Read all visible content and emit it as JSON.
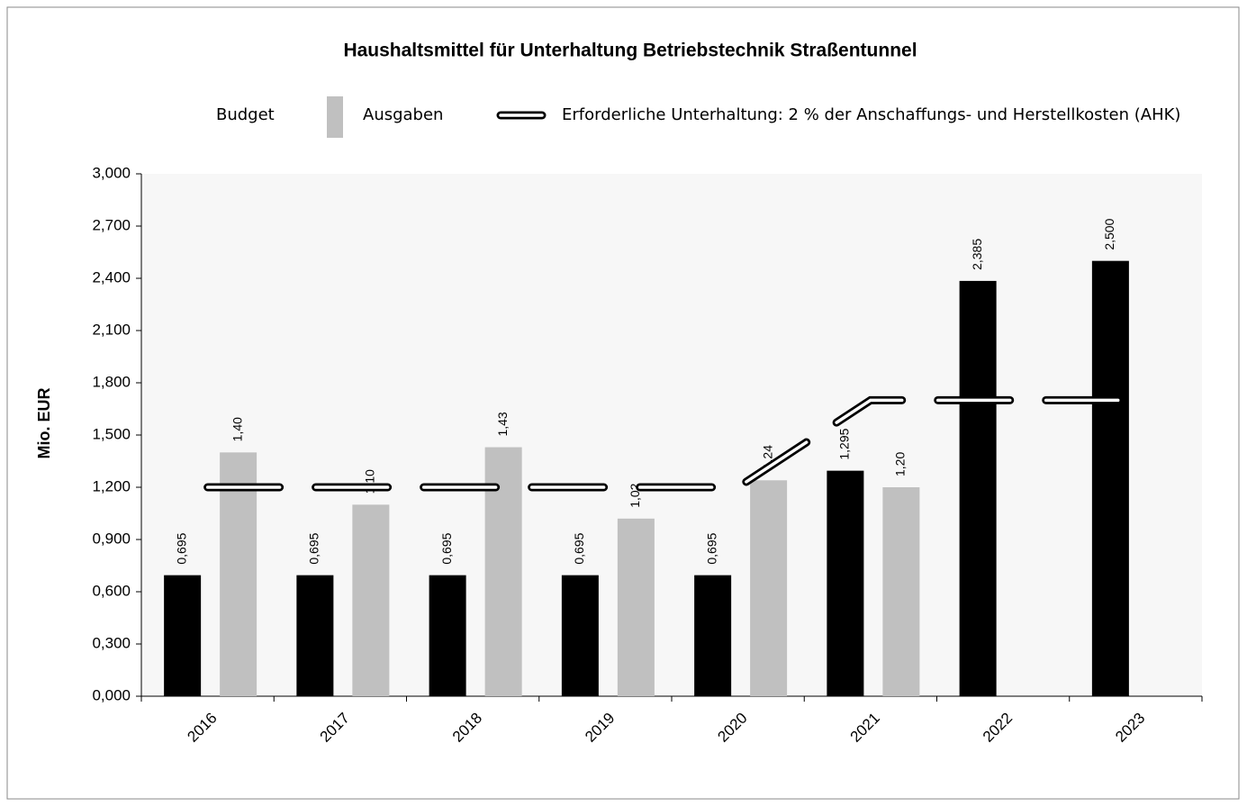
{
  "chart_data": {
    "type": "bar",
    "title": "Haushaltsmittel für Unterhaltung Betriebstechnik Straßentunnel",
    "y_label": "Mio. EUR",
    "categories": [
      "2016",
      "2017",
      "2018",
      "2019",
      "2020",
      "2021",
      "2022",
      "2023"
    ],
    "series": [
      {
        "name": "Budget",
        "type": "bar",
        "color": "#000000",
        "values": [
          0.695,
          0.695,
          0.695,
          0.695,
          0.695,
          1.295,
          2.385,
          2.5
        ],
        "value_labels": [
          "0,695",
          "0,695",
          "0,695",
          "0,695",
          "0,695",
          "1,295",
          "2,385",
          "2,500"
        ]
      },
      {
        "name": "Ausgaben",
        "type": "bar",
        "color": "#c0c0c0",
        "values": [
          1.4,
          1.1,
          1.43,
          1.02,
          1.24,
          1.2,
          null,
          null
        ],
        "value_labels": [
          "1,40",
          "1,10",
          "1,43",
          "1,02",
          "1,24",
          "1,20",
          null,
          null
        ]
      },
      {
        "name": "Erforderliche Unterhaltung: 2 % der Anschaffungs- und Herstellkosten (AHK)",
        "type": "line",
        "color": "#000000",
        "values": [
          1.2,
          1.2,
          1.2,
          1.2,
          1.2,
          1.7,
          1.7,
          1.7
        ]
      }
    ],
    "ylim": [
      0,
      3
    ],
    "yticks": [
      {
        "value": 0,
        "label": "0,000"
      },
      {
        "value": 0.3,
        "label": "0,300"
      },
      {
        "value": 0.6,
        "label": "0,600"
      },
      {
        "value": 0.9,
        "label": "0,900"
      },
      {
        "value": 1.2,
        "label": "1,200"
      },
      {
        "value": 1.5,
        "label": "1,500"
      },
      {
        "value": 1.8,
        "label": "1,800"
      },
      {
        "value": 2.1,
        "label": "2,100"
      },
      {
        "value": 2.4,
        "label": "2,400"
      },
      {
        "value": 2.7,
        "label": "2,700"
      },
      {
        "value": 3,
        "label": "3,000"
      }
    ]
  }
}
